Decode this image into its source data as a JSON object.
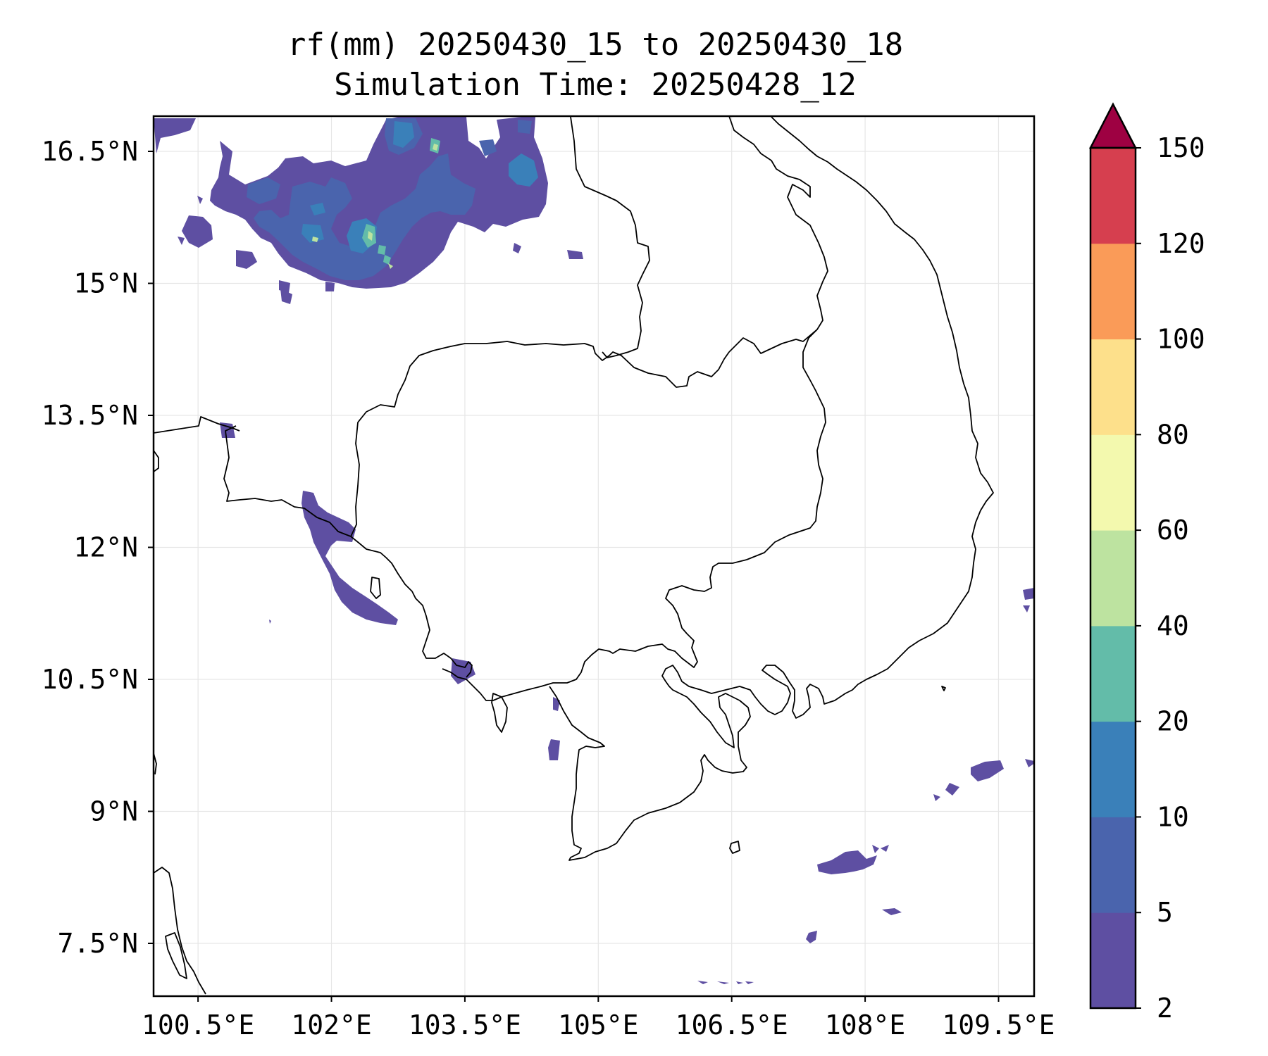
{
  "title": {
    "line1": "rf(mm) 20250430_15 to 20250430_18",
    "line2": "Simulation Time: 20250428_12"
  },
  "map": {
    "lon_range": [
      100.0,
      109.9
    ],
    "lat_range": [
      6.9,
      16.9
    ],
    "x_ticks": [
      {
        "value": 100.5,
        "label": "100.5°E"
      },
      {
        "value": 102.0,
        "label": "102°E"
      },
      {
        "value": 103.5,
        "label": "103.5°E"
      },
      {
        "value": 105.0,
        "label": "105°E"
      },
      {
        "value": 106.5,
        "label": "106.5°E"
      },
      {
        "value": 108.0,
        "label": "108°E"
      },
      {
        "value": 109.5,
        "label": "109.5°E"
      }
    ],
    "y_ticks": [
      {
        "value": 7.5,
        "label": "7.5°N"
      },
      {
        "value": 9.0,
        "label": "9°N"
      },
      {
        "value": 10.5,
        "label": "10.5°N"
      },
      {
        "value": 12.0,
        "label": "12°N"
      },
      {
        "value": 13.5,
        "label": "13.5°N"
      },
      {
        "value": 15.0,
        "label": "15°N"
      },
      {
        "value": 16.5,
        "label": "16.5°N"
      }
    ],
    "grid": true
  },
  "colorbar": {
    "levels": [
      {
        "value": 2,
        "label": "2"
      },
      {
        "value": 5,
        "label": "5"
      },
      {
        "value": 10,
        "label": "10"
      },
      {
        "value": 20,
        "label": "20"
      },
      {
        "value": 40,
        "label": "40"
      },
      {
        "value": 60,
        "label": "60"
      },
      {
        "value": 80,
        "label": "80"
      },
      {
        "value": 100,
        "label": "100"
      },
      {
        "value": 120,
        "label": "120"
      },
      {
        "value": 150,
        "label": "150"
      }
    ],
    "colors": [
      "#5e4fa2",
      "#4a64ad",
      "#3a80b9",
      "#63bca9",
      "#bde3a0",
      "#f3f9ae",
      "#fde08b",
      "#fa9b58",
      "#d63f4f"
    ],
    "extend_color": "#9e0142"
  },
  "colors": {
    "rain_light": "#5e4fa2",
    "rain_moderate": "#4a64ad",
    "rain_heavy": "#3a80b9",
    "rain_intense": "#63bca9",
    "rain_peak": "#bde3a0",
    "border": "#000000",
    "grid": "#e6e6e6"
  }
}
